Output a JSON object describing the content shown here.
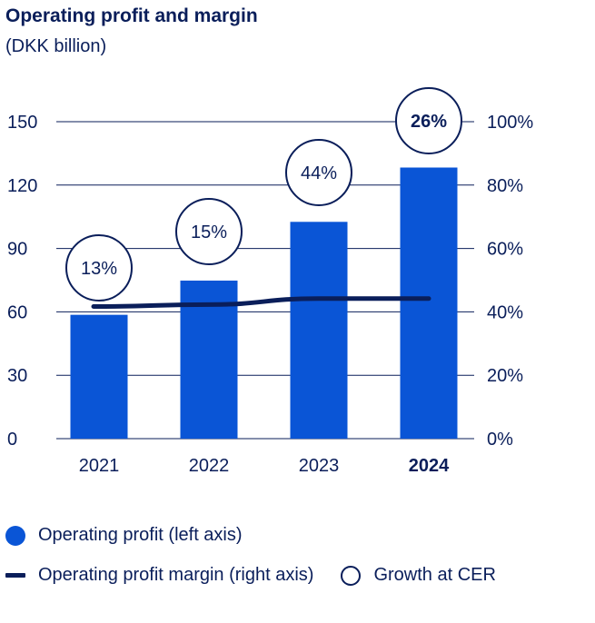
{
  "chart_data": {
    "type": "bar",
    "title": "Operating profit and margin",
    "subtitle": "(DKK billion)",
    "categories": [
      "2021",
      "2022",
      "2023",
      "2024"
    ],
    "highlight_category": "2024",
    "series": [
      {
        "name": "Operating profit (left axis)",
        "axis": "left",
        "type": "bar",
        "values": [
          58.6,
          74.8,
          102.6,
          128.3
        ]
      },
      {
        "name": "Operating profit margin (right axis)",
        "axis": "right",
        "type": "line",
        "values": [
          41.7,
          42.3,
          44.2,
          44.2
        ]
      }
    ],
    "growth_at_cer": [
      "13%",
      "15%",
      "44%",
      "26%"
    ],
    "growth_label": "Growth at CER",
    "left_axis": {
      "min": 0,
      "max": 150,
      "ticks": [
        "0",
        "30",
        "60",
        "90",
        "120",
        "150"
      ]
    },
    "right_axis": {
      "min": 0,
      "max": 100,
      "ticks": [
        "0%",
        "20%",
        "40%",
        "60%",
        "80%",
        "100%"
      ]
    },
    "colors": {
      "bar": "#0a55d6",
      "line": "#0a1e5a",
      "text": "#0a1e5a",
      "grid": "#0a1e5a"
    }
  }
}
